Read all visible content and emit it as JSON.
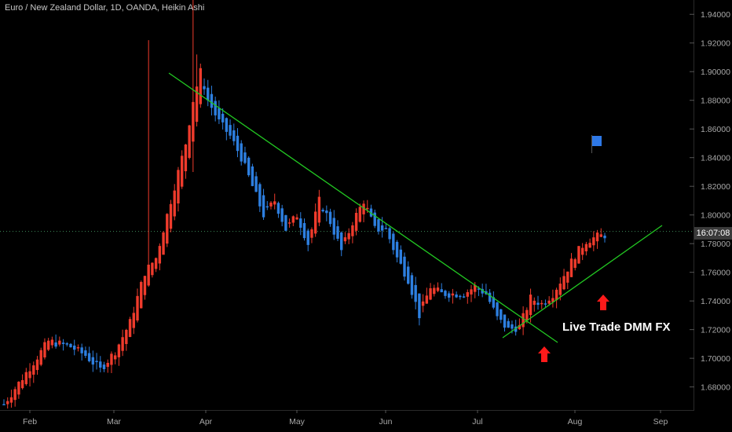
{
  "header": {
    "title": "Euro / New Zealand Dollar, 1D, OANDA, Heikin Ashi"
  },
  "annotation": {
    "text": "Live Trade DMM FX"
  },
  "price_tag": {
    "text": "16:07:08"
  },
  "colors": {
    "up": "#ef3b2c",
    "down": "#2d7fe0",
    "trendline": "#22c722",
    "arrow": "#ff1a1a",
    "flag": "#2e78e6",
    "axis_text": "#a8a8a8",
    "background": "#000000",
    "current_price_line": "#3e8a5a"
  },
  "icons": [
    "flag-icon",
    "arrow-up-icon"
  ],
  "chart_data": {
    "type": "candlestick",
    "style": "Heikin Ashi",
    "y_axis": {
      "ticks": [
        "1.94000",
        "1.92000",
        "1.90000",
        "1.88000",
        "1.86000",
        "1.84000",
        "1.82000",
        "1.80000",
        "1.78000",
        "1.76000",
        "1.74000",
        "1.72000",
        "1.70000",
        "1.68000"
      ],
      "range": [
        1.665,
        1.95
      ],
      "side": "right"
    },
    "x_axis": {
      "ticks": [
        "Feb",
        "Mar",
        "Apr",
        "May",
        "Jun",
        "Jul",
        "Aug",
        "Sep"
      ]
    },
    "current_price": 1.7885,
    "waypoints": [
      [
        0,
        1.668
      ],
      [
        6,
        1.69
      ],
      [
        12,
        1.712
      ],
      [
        18,
        1.708
      ],
      [
        22,
        1.702
      ],
      [
        26,
        1.692
      ],
      [
        30,
        1.705
      ],
      [
        34,
        1.725
      ],
      [
        38,
        1.76
      ],
      [
        41,
        1.77
      ],
      [
        43,
        1.79
      ],
      [
        45,
        1.81
      ],
      [
        47,
        1.83
      ],
      [
        49,
        1.85
      ],
      [
        51,
        1.88
      ],
      [
        53,
        1.9
      ],
      [
        55,
        1.88
      ],
      [
        58,
        1.865
      ],
      [
        61,
        1.855
      ],
      [
        64,
        1.84
      ],
      [
        67,
        1.82
      ],
      [
        70,
        1.8
      ],
      [
        73,
        1.81
      ],
      [
        76,
        1.79
      ],
      [
        79,
        1.8
      ],
      [
        82,
        1.78
      ],
      [
        85,
        1.81
      ],
      [
        88,
        1.795
      ],
      [
        91,
        1.775
      ],
      [
        94,
        1.795
      ],
      [
        97,
        1.81
      ],
      [
        100,
        1.79
      ],
      [
        103,
        1.79
      ],
      [
        106,
        1.77
      ],
      [
        109,
        1.755
      ],
      [
        112,
        1.73
      ],
      [
        115,
        1.75
      ],
      [
        118,
        1.745
      ],
      [
        121,
        1.745
      ],
      [
        124,
        1.745
      ],
      [
        127,
        1.75
      ],
      [
        130,
        1.745
      ],
      [
        133,
        1.728
      ],
      [
        136,
        1.72
      ],
      [
        139,
        1.722
      ],
      [
        142,
        1.742
      ],
      [
        145,
        1.738
      ],
      [
        148,
        1.745
      ],
      [
        151,
        1.758
      ],
      [
        154,
        1.772
      ],
      [
        157,
        1.782
      ],
      [
        160,
        1.785
      ],
      [
        162,
        1.786
      ]
    ],
    "bars_count": 163,
    "trendlines": [
      {
        "name": "descending resistance",
        "from": [
          "late Mar",
          1.901
        ],
        "to": [
          "late Jul",
          1.714
        ]
      },
      {
        "name": "ascending support",
        "from": [
          "early Jul",
          1.717
        ],
        "to": [
          "Sep",
          1.795
        ]
      }
    ]
  }
}
